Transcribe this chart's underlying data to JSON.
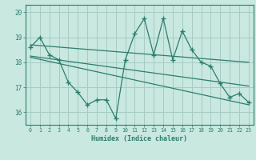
{
  "xlabel": "Humidex (Indice chaleur)",
  "bg_color": "#c8e8e0",
  "grid_color": "#a8ccc4",
  "line_color": "#2d7d6d",
  "xlim": [
    -0.5,
    23.5
  ],
  "ylim": [
    15.5,
    20.3
  ],
  "yticks": [
    16,
    17,
    18,
    19,
    20
  ],
  "xticks": [
    0,
    1,
    2,
    3,
    4,
    5,
    6,
    7,
    8,
    9,
    10,
    11,
    12,
    13,
    14,
    15,
    16,
    17,
    18,
    19,
    20,
    21,
    22,
    23
  ],
  "data_x": [
    0,
    1,
    2,
    3,
    4,
    5,
    6,
    7,
    8,
    9,
    10,
    11,
    12,
    13,
    14,
    15,
    16,
    17,
    18,
    19,
    20,
    21,
    22,
    23
  ],
  "data_y": [
    18.6,
    19.0,
    18.3,
    18.1,
    17.2,
    16.8,
    16.3,
    16.5,
    16.5,
    15.75,
    18.1,
    19.15,
    19.75,
    18.3,
    19.75,
    18.1,
    19.25,
    18.5,
    18.0,
    17.85,
    17.15,
    16.6,
    16.75,
    16.4
  ],
  "trend1_x": [
    0,
    23
  ],
  "trend1_y": [
    18.7,
    18.0
  ],
  "trend2_x": [
    0,
    23
  ],
  "trend2_y": [
    18.25,
    17.05
  ],
  "trend3_x": [
    0,
    23
  ],
  "trend3_y": [
    18.2,
    16.3
  ]
}
